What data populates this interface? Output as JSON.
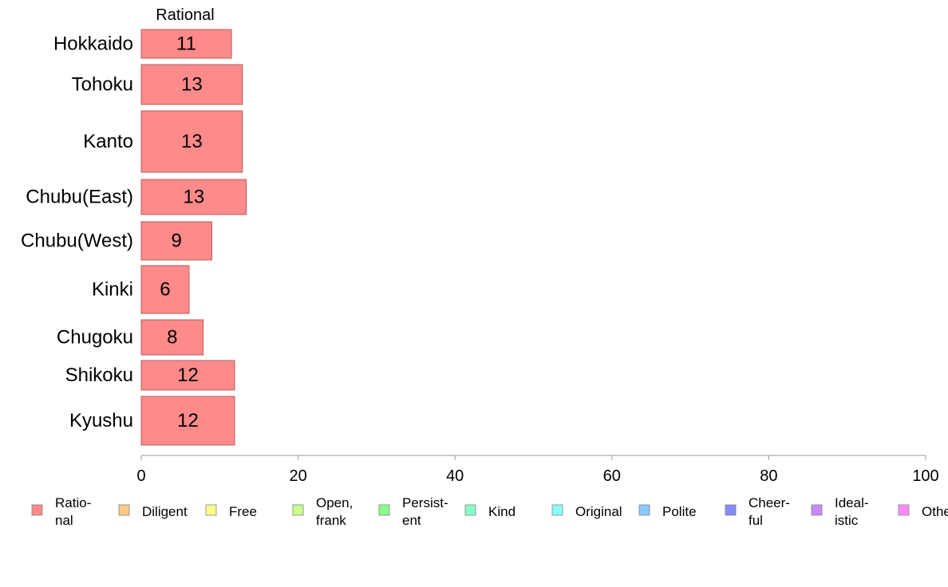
{
  "chart_data": {
    "type": "bar",
    "orientation": "horizontal",
    "series_title": "Rational",
    "categories": [
      "Hokkaido",
      "Tohoku",
      "Kanto",
      "Chubu(East)",
      "Chubu(West)",
      "Kinki",
      "Chugoku",
      "Shikoku",
      "Kyushu"
    ],
    "values": [
      11,
      13,
      13,
      13,
      9,
      6,
      8,
      12,
      12
    ],
    "plotted_values": [
      11.5,
      12.9,
      12.9,
      13.4,
      9.0,
      6.1,
      7.9,
      11.9,
      11.9
    ],
    "xlim": [
      0,
      100
    ],
    "xticks": [
      0,
      20,
      40,
      60,
      80,
      100
    ],
    "bar_color": "#ff8a8a",
    "bar_edge_color": "#b06060",
    "axis_color": "#9e9e9e",
    "grid": false,
    "legend_position": "bottom",
    "legend": [
      {
        "lines": [
          "Ratio-",
          "nal"
        ],
        "color": "#ff8a8a"
      },
      {
        "lines": [
          "Diligent"
        ],
        "color": "#ffc98a"
      },
      {
        "lines": [
          "Free"
        ],
        "color": "#ffff8a"
      },
      {
        "lines": [
          "Open,",
          "frank"
        ],
        "color": "#c9ff8a"
      },
      {
        "lines": [
          "Persist-",
          "ent"
        ],
        "color": "#8aff8a"
      },
      {
        "lines": [
          "Kind"
        ],
        "color": "#8affc9"
      },
      {
        "lines": [
          "Original"
        ],
        "color": "#8affff"
      },
      {
        "lines": [
          "Polite"
        ],
        "color": "#8ac9ff"
      },
      {
        "lines": [
          "Cheer-",
          "ful"
        ],
        "color": "#8a8aff"
      },
      {
        "lines": [
          "Ideal-",
          "istic"
        ],
        "color": "#c98aff"
      },
      {
        "lines": [
          "Other"
        ],
        "color": "#ff8aff"
      }
    ]
  }
}
